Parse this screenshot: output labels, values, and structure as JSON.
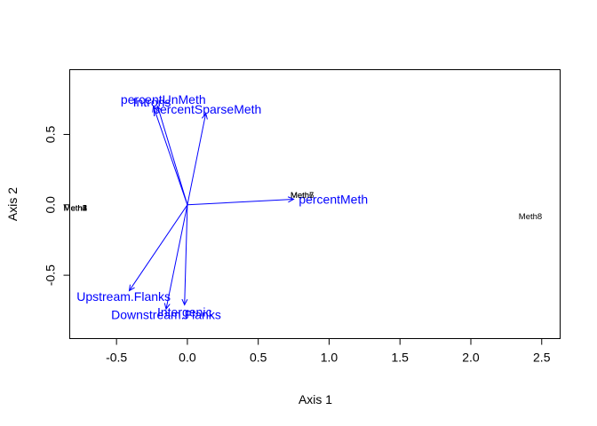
{
  "chart_data": {
    "type": "scatter",
    "xlabel": "Axis 1",
    "ylabel": "Axis 2",
    "xlim": [
      -0.83,
      2.63
    ],
    "ylim": [
      -0.95,
      0.96
    ],
    "x_ticks": [
      -0.5,
      0.0,
      0.5,
      1.0,
      1.5,
      2.0,
      2.5
    ],
    "x_tick_labels": [
      "-0.5",
      "0.0",
      "0.5",
      "1.0",
      "1.5",
      "2.0",
      "2.5"
    ],
    "y_ticks": [
      -0.5,
      0.0,
      0.5
    ],
    "y_tick_labels": [
      "-0.5",
      "0.0",
      "0.5"
    ],
    "grid": false,
    "points": [
      {
        "label": "Meth1",
        "x": -0.79,
        "y": -0.02
      },
      {
        "label": "Meth2",
        "x": -0.79,
        "y": -0.02
      },
      {
        "label": "Meth3",
        "x": -0.79,
        "y": -0.02
      },
      {
        "label": "Meth4",
        "x": -0.79,
        "y": -0.02
      },
      {
        "label": "Meth5",
        "x": -0.79,
        "y": -0.02
      },
      {
        "label": "Meth6",
        "x": 0.81,
        "y": 0.07
      },
      {
        "label": "Meth7",
        "x": 0.81,
        "y": 0.07
      },
      {
        "label": "Meth8",
        "x": 2.42,
        "y": -0.08
      }
    ],
    "vectors": [
      {
        "name": "percentUnMeth",
        "x": -0.24,
        "y": 0.7,
        "label_x": -0.17,
        "label_y": 0.75
      },
      {
        "name": "Introns",
        "x": -0.21,
        "y": 0.7,
        "label_x": -0.25,
        "label_y": 0.73
      },
      {
        "name": "percentSparseMeth",
        "x": 0.13,
        "y": 0.65,
        "label_x": 0.14,
        "label_y": 0.68
      },
      {
        "name": "percentMeth",
        "x": 0.75,
        "y": 0.04,
        "label_x": 1.03,
        "label_y": 0.04
      },
      {
        "name": "Upstream.Flanks",
        "x": -0.41,
        "y": -0.61,
        "label_x": -0.45,
        "label_y": -0.65
      },
      {
        "name": "Intergenic",
        "x": -0.02,
        "y": -0.71,
        "label_x": -0.02,
        "label_y": -0.76
      },
      {
        "name": "Downstream.Flanks",
        "x": -0.15,
        "y": -0.74,
        "label_x": -0.15,
        "label_y": -0.78
      }
    ],
    "colors": {
      "vectors": "#0000ff",
      "points": "#000000",
      "axes": "#000000"
    }
  }
}
